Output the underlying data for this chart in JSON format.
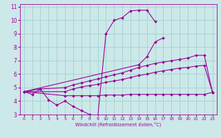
{
  "x_all": [
    0,
    1,
    2,
    3,
    4,
    5,
    6,
    7,
    8,
    9,
    10,
    11,
    12,
    13,
    14,
    15,
    16,
    17,
    18,
    19,
    20,
    21,
    22,
    23
  ],
  "line_spike": [
    4.7,
    4.5,
    4.9,
    4.1,
    3.7,
    4.0,
    3.6,
    3.3,
    3.0,
    2.8,
    9.0,
    10.0,
    10.2,
    10.7,
    10.75,
    10.75,
    9.9,
    null,
    null,
    null,
    null,
    null,
    null,
    null
  ],
  "line_upper": [
    4.7,
    null,
    null,
    null,
    null,
    null,
    null,
    null,
    null,
    null,
    null,
    null,
    null,
    null,
    6.7,
    7.3,
    8.4,
    8.7,
    null,
    null,
    null,
    null,
    null,
    null
  ],
  "line_mid1": [
    4.7,
    null,
    4.9,
    null,
    null,
    5.0,
    5.2,
    5.35,
    5.5,
    5.65,
    5.8,
    5.95,
    6.1,
    6.3,
    6.5,
    6.65,
    6.8,
    6.9,
    7.0,
    7.1,
    7.2,
    7.4,
    7.4,
    4.65
  ],
  "line_mid2": [
    4.7,
    null,
    null,
    null,
    null,
    4.7,
    4.9,
    5.05,
    5.15,
    5.25,
    5.4,
    5.5,
    5.6,
    5.75,
    5.9,
    6.0,
    6.15,
    6.25,
    6.35,
    6.45,
    6.5,
    6.6,
    6.65,
    4.65
  ],
  "line_flat": [
    4.7,
    null,
    null,
    null,
    null,
    4.4,
    4.4,
    4.4,
    4.4,
    4.4,
    4.45,
    4.45,
    4.45,
    4.5,
    4.5,
    4.5,
    4.5,
    4.5,
    4.5,
    4.5,
    4.5,
    4.5,
    4.5,
    4.65
  ],
  "line_color": "#990099",
  "bg_color": "#cce8e8",
  "grid_color": "#99cccc",
  "xlabel": "Windchill (Refroidissement éolien,°C)",
  "xlim": [
    -0.5,
    23.5
  ],
  "ylim": [
    3,
    11.2
  ],
  "yticks": [
    3,
    4,
    5,
    6,
    7,
    8,
    9,
    10,
    11
  ],
  "xticks": [
    0,
    1,
    2,
    3,
    4,
    5,
    6,
    7,
    8,
    9,
    10,
    11,
    12,
    13,
    14,
    15,
    16,
    17,
    18,
    19,
    20,
    21,
    22,
    23
  ]
}
